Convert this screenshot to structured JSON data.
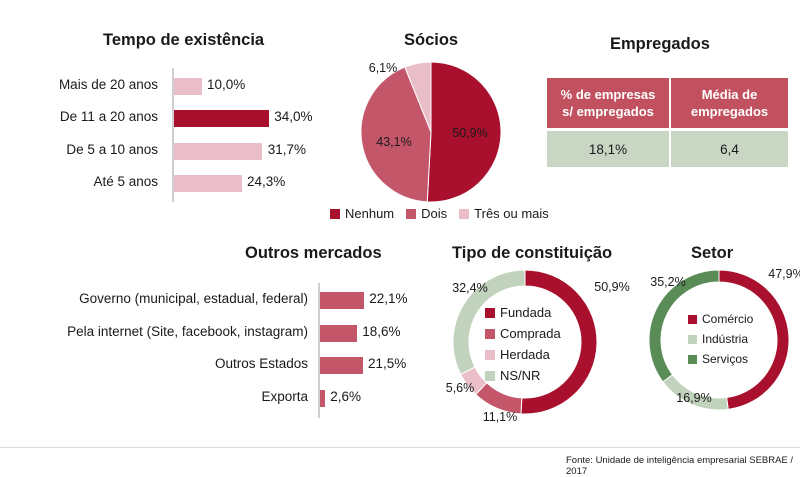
{
  "colors": {
    "dark": "#a8102e",
    "mid": "#c4566a",
    "light": "#e9bec8",
    "green": "#c2d3bd",
    "dkgreen": "#5a8c57",
    "table_head": "#c1515f",
    "table_cell": "#c9d6c4"
  },
  "chart_data": [
    {
      "type": "bar",
      "title": "Tempo de existência",
      "categories": [
        "Mais de 20 anos",
        "De 11 a 20 anos",
        "De 5 a 10 anos",
        "Até 5 anos"
      ],
      "values": [
        10.0,
        34.0,
        31.7,
        24.3
      ],
      "value_labels": [
        "10,0%",
        "34,0%",
        "31,7%",
        "24,3%"
      ],
      "colors": [
        "#e9bec8",
        "#a8102e",
        "#e9bec8",
        "#e9bec8"
      ],
      "orientation": "horizontal"
    },
    {
      "type": "pie",
      "title": "Sócios",
      "labels": [
        "Nenhum",
        "Dois",
        "Três ou mais"
      ],
      "values": [
        50.9,
        43.1,
        6.1
      ],
      "value_labels": [
        "50,9%",
        "43,1%",
        "6,1%"
      ],
      "colors": [
        "#a8102e",
        "#c4566a",
        "#e9bec8"
      ],
      "legend": "bottom"
    },
    {
      "type": "table",
      "title": "Empregados",
      "columns": [
        "% de empresas s/ empregados",
        "Média de empregados"
      ],
      "header_lines": [
        [
          "% de empresas",
          "s/ empregados"
        ],
        [
          "Média de",
          "empregados"
        ]
      ],
      "rows": [
        [
          "18,1%",
          "6,4"
        ]
      ]
    },
    {
      "type": "bar",
      "title": "Outros mercados",
      "categories": [
        "Governo (municipal, estadual, federal)",
        "Pela internet (Site, facebook, instagram)",
        "Outros Estados",
        "Exporta"
      ],
      "values": [
        22.1,
        18.6,
        21.5,
        2.6
      ],
      "value_labels": [
        "22,1%",
        "18,6%",
        "21,5%",
        "2,6%"
      ],
      "colors": [
        "#c4566a",
        "#c4566a",
        "#c4566a",
        "#c4566a"
      ],
      "orientation": "horizontal"
    },
    {
      "type": "pie",
      "title": "Tipo de constituição",
      "donut": true,
      "labels": [
        "Fundada",
        "Comprada",
        "Herdada",
        "NS/NR"
      ],
      "values": [
        50.9,
        11.1,
        5.6,
        32.4
      ],
      "value_labels": [
        "50,9%",
        "11,1%",
        "5,6%",
        "32,4%"
      ],
      "colors": [
        "#a8102e",
        "#c4566a",
        "#e9bec8",
        "#c2d3bd"
      ],
      "legend": "center"
    },
    {
      "type": "pie",
      "title": "Setor",
      "donut": true,
      "labels": [
        "Comércio",
        "Indústria",
        "Serviços"
      ],
      "values": [
        47.9,
        16.9,
        35.2
      ],
      "value_labels": [
        "47,9%",
        "16,9%",
        "35,2%"
      ],
      "colors": [
        "#a8102e",
        "#c2d3bd",
        "#5a8c57"
      ],
      "legend": "center"
    }
  ],
  "source": "Fonte: Unidade de inteligência empresarial SEBRAE / 2017"
}
